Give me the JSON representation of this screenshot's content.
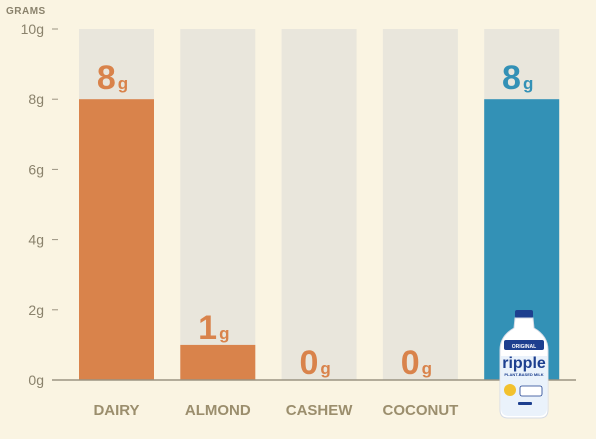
{
  "chart_data": {
    "type": "bar",
    "ylabel": "GRAMS",
    "ylim": [
      0,
      10
    ],
    "yticks": [
      0,
      2,
      4,
      6,
      8,
      10
    ],
    "ytick_labels": [
      "0g",
      "2g",
      "4g",
      "6g",
      "8g",
      "10g"
    ],
    "categories": [
      "DAIRY",
      "ALMOND",
      "CASHEW",
      "COCONUT",
      ""
    ],
    "values": [
      8,
      1,
      0,
      0,
      8
    ],
    "value_labels": [
      "8",
      "1",
      "0",
      "0",
      "8"
    ],
    "value_unit": "g",
    "colors": {
      "background": "#faf4e2",
      "track": "#e9e6dc",
      "bar": "#d9834b",
      "highlight_bar": "#3391b6",
      "axis": "#9b9382",
      "label_text": "#8a826c"
    },
    "highlight_index": 4,
    "product_image": {
      "icon": "milk-bottle-icon",
      "brand_text": "ripple",
      "variant_text": "ORIGINAL",
      "sub_text": "PLANT-BASED MILK"
    }
  }
}
